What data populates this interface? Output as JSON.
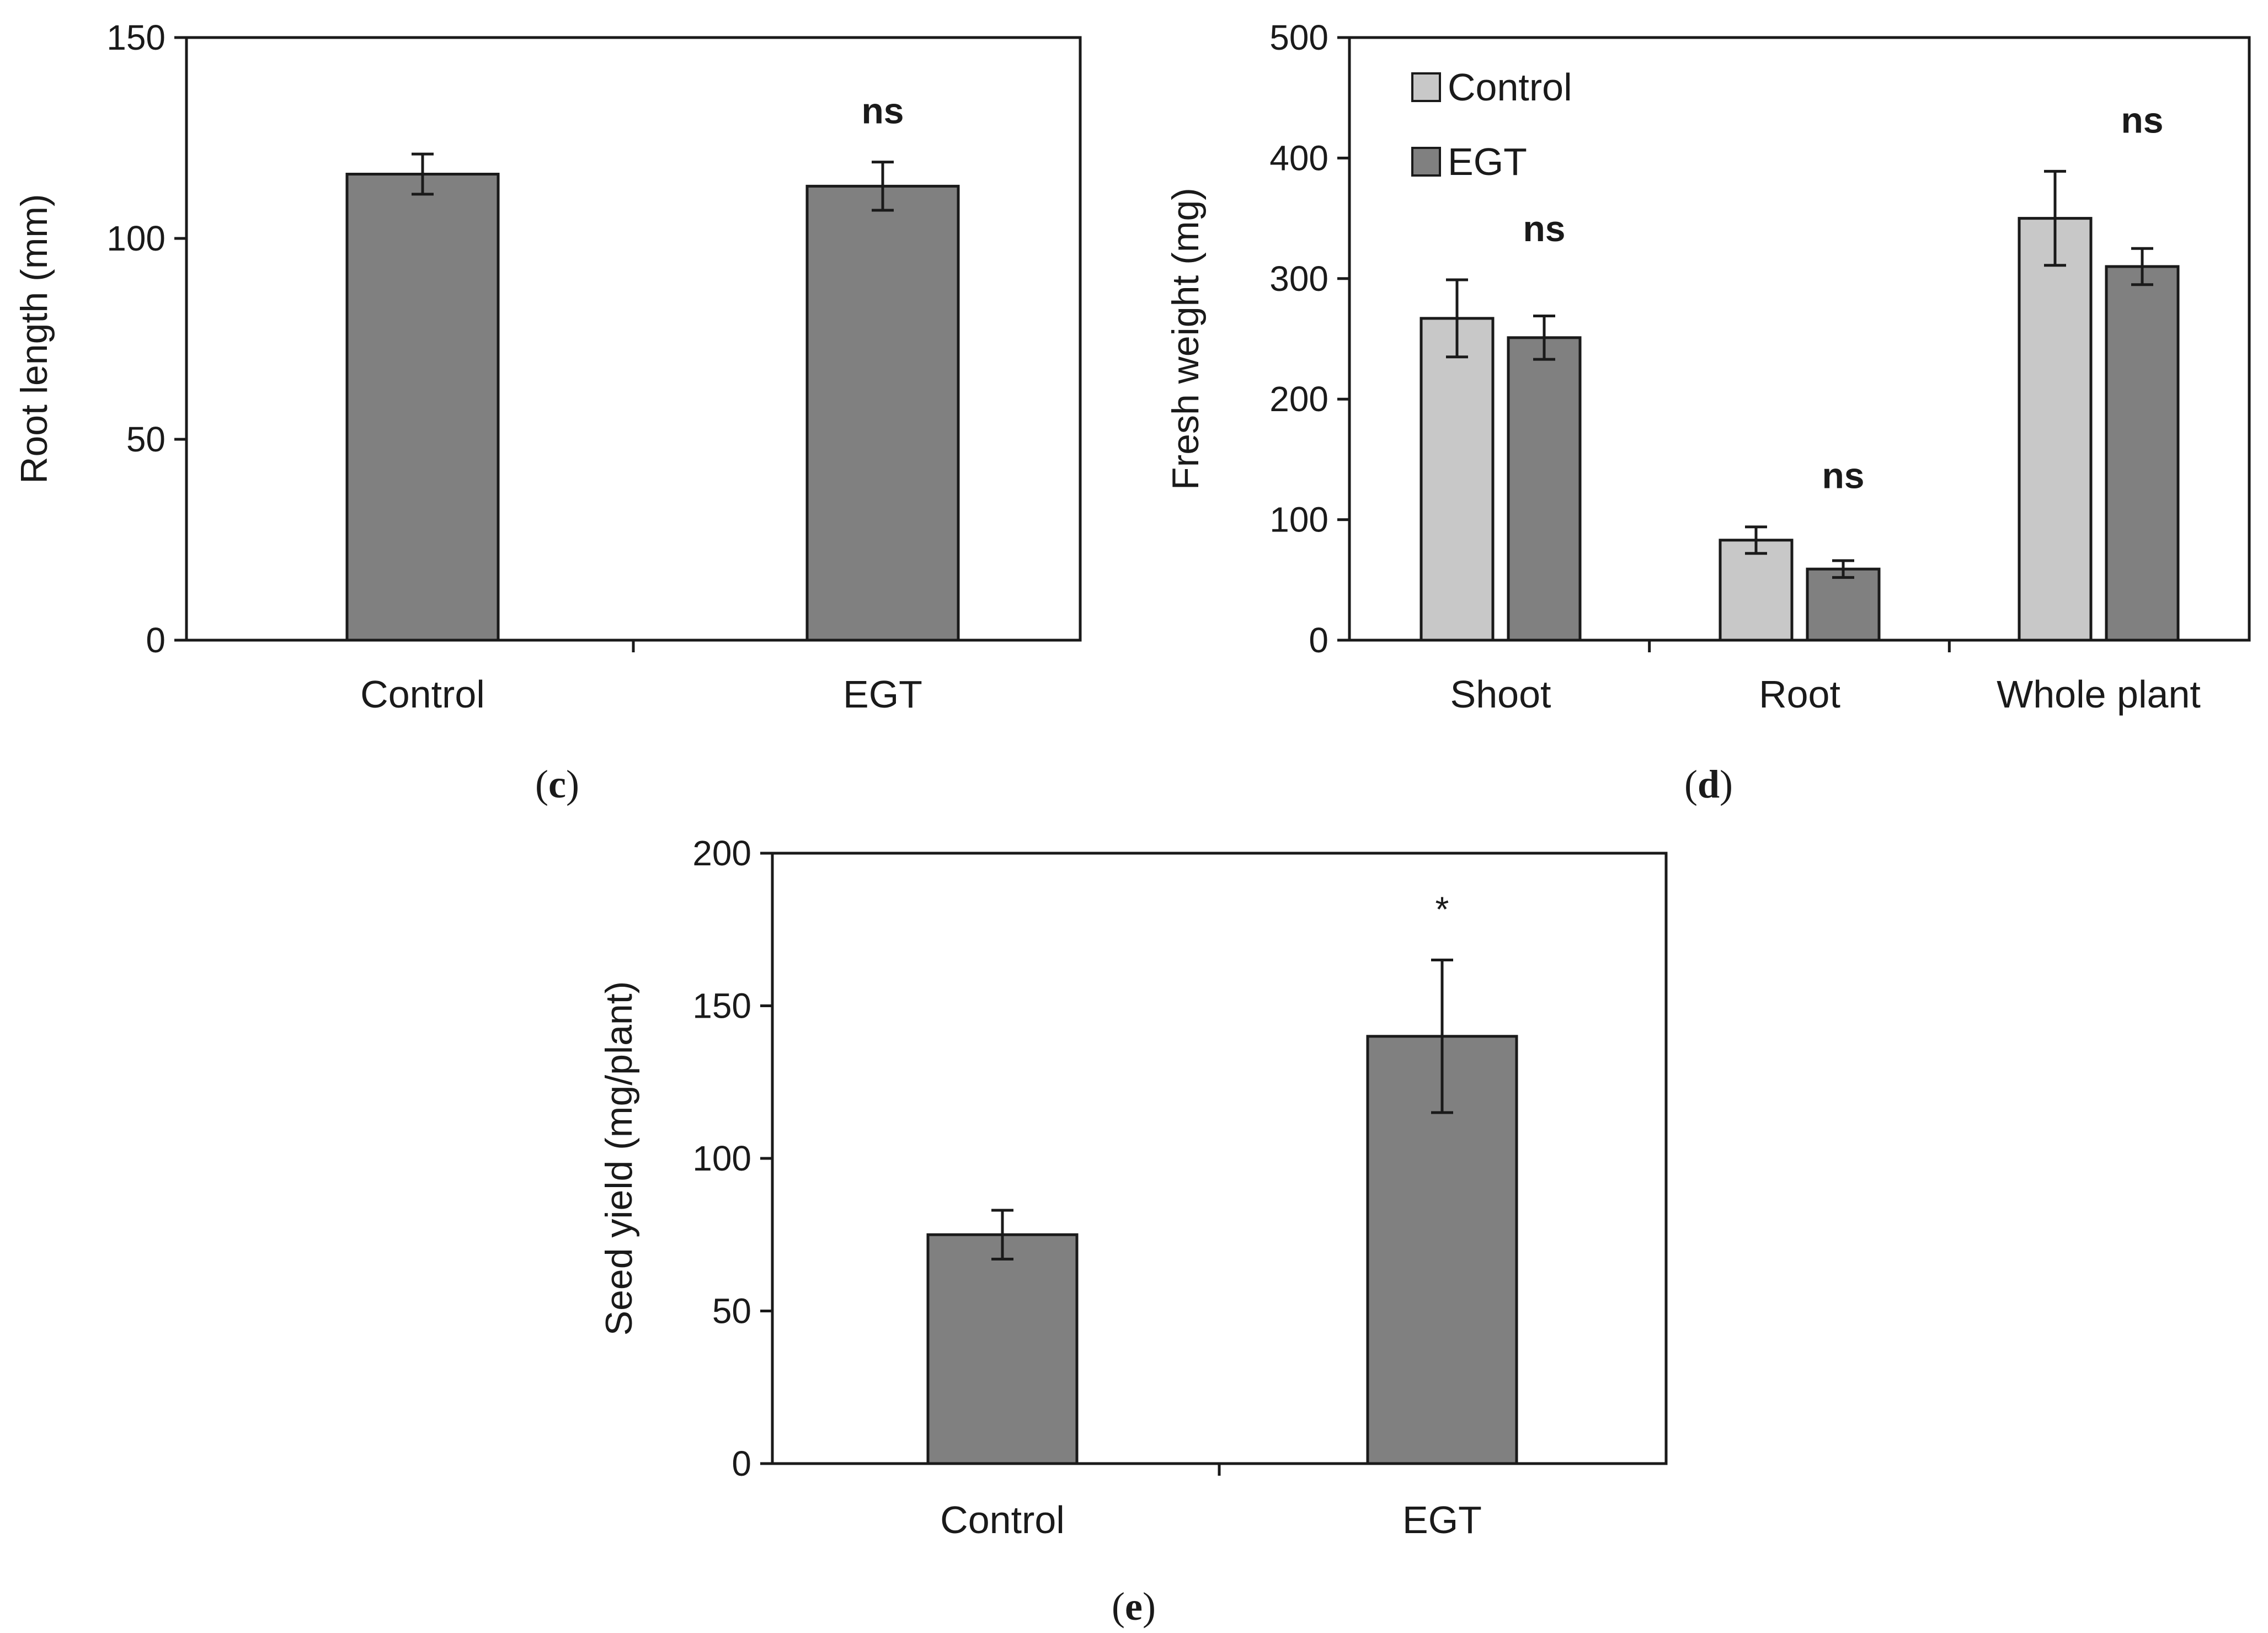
{
  "colors": {
    "control": "#c8c8c8",
    "egt": "#808080",
    "stroke": "#1a1a1a",
    "background": "#ffffff"
  },
  "chart_data": [
    {
      "id": "c",
      "type": "bar",
      "panel_label": "c",
      "title": "",
      "xlabel": "",
      "ylabel": "Root length (mm)",
      "ylim": [
        0,
        150
      ],
      "yticks": [
        0,
        50,
        100,
        150
      ],
      "grid": false,
      "categories": [
        "Control",
        "EGT"
      ],
      "series": [
        {
          "name": "Root length",
          "values": [
            116,
            113
          ],
          "errors": [
            5,
            6
          ],
          "color_key": "egt"
        }
      ],
      "annotations": [
        {
          "category": "EGT",
          "text": "ns"
        }
      ]
    },
    {
      "id": "d",
      "type": "bar",
      "panel_label": "d",
      "title": "",
      "xlabel": "",
      "ylabel": "Fresh weight (mg)",
      "ylim": [
        0,
        500
      ],
      "yticks": [
        0,
        100,
        200,
        300,
        400,
        500
      ],
      "grid": false,
      "legend": "top-left",
      "categories": [
        "Shoot",
        "Root",
        "Whole plant"
      ],
      "series": [
        {
          "name": "Control",
          "values": [
            267,
            83,
            350
          ],
          "errors": [
            32,
            11,
            39
          ],
          "color_key": "control"
        },
        {
          "name": "EGT",
          "values": [
            251,
            59,
            310
          ],
          "errors": [
            18,
            7,
            15
          ],
          "color_key": "egt"
        }
      ],
      "annotations": [
        {
          "category": "Shoot",
          "text": "ns"
        },
        {
          "category": "Root",
          "text": "ns"
        },
        {
          "category": "Whole plant",
          "text": "ns"
        }
      ]
    },
    {
      "id": "e",
      "type": "bar",
      "panel_label": "e",
      "title": "",
      "xlabel": "",
      "ylabel": "Seed yield (mg/plant)",
      "ylim": [
        0,
        200
      ],
      "yticks": [
        0,
        50,
        100,
        150,
        200
      ],
      "grid": false,
      "categories": [
        "Control",
        "EGT"
      ],
      "series": [
        {
          "name": "Seed yield",
          "values": [
            75,
            140
          ],
          "errors": [
            8,
            25
          ],
          "color_key": "egt"
        }
      ],
      "annotations": [
        {
          "category": "EGT",
          "text": "*"
        }
      ]
    }
  ]
}
